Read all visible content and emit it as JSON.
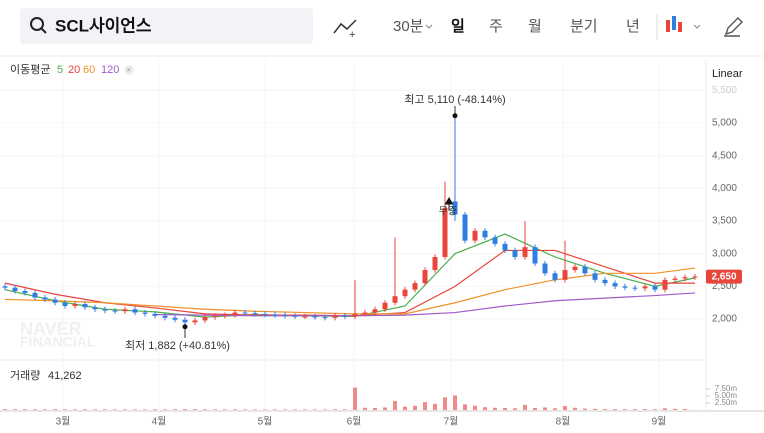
{
  "header": {
    "search": "SCL사이언스",
    "intervals": [
      "30분",
      "일",
      "주",
      "월",
      "분기",
      "년"
    ]
  },
  "chart_data": {
    "type": "candlestick",
    "scale": "Linear",
    "ma_title": "이동평균",
    "x": [
      0,
      1,
      2,
      3,
      4,
      5,
      6,
      7,
      8,
      9,
      10,
      11,
      12,
      13,
      14,
      15,
      16,
      17,
      18,
      19,
      20,
      21,
      22,
      23,
      24,
      25,
      26,
      27,
      28,
      29,
      30,
      31,
      32,
      33,
      34,
      35,
      36,
      37,
      38,
      39,
      40,
      41,
      42,
      43,
      44,
      45,
      46,
      47,
      48,
      49,
      50,
      51,
      52,
      53,
      54,
      55,
      56,
      57,
      58,
      59,
      60,
      61,
      62,
      63,
      64,
      65,
      66,
      67,
      68,
      69
    ],
    "xlim": [
      -0.5,
      69.5
    ],
    "xticks": [
      {
        "value": 5.8,
        "label": "3월"
      },
      {
        "value": 15.4,
        "label": "4월"
      },
      {
        "value": 26,
        "label": "5월"
      },
      {
        "value": 34.9,
        "label": "6월"
      },
      {
        "value": 44.6,
        "label": "7월"
      },
      {
        "value": 55.8,
        "label": "8월"
      },
      {
        "value": 65.4,
        "label": "9월"
      }
    ],
    "open": [
      2500,
      2480,
      2430,
      2400,
      2330,
      2300,
      2250,
      2200,
      2230,
      2180,
      2150,
      2130,
      2120,
      2150,
      2100,
      2080,
      2050,
      2020,
      1990,
      1950,
      1980,
      2030,
      2050,
      2060,
      2100,
      2090,
      2080,
      2070,
      2060,
      2050,
      2040,
      2040,
      2030,
      2020,
      2050,
      2040,
      2080,
      2100,
      2150,
      2250,
      2350,
      2450,
      2550,
      2750,
      2950,
      3800,
      3600,
      3200,
      3350,
      3250,
      3150,
      3050,
      2950,
      3100,
      2850,
      2700,
      2600,
      2750,
      2800,
      2700,
      2600,
      2550,
      2500,
      2480,
      2470,
      2500,
      2450,
      2600,
      2620,
      2640
    ],
    "high": [
      2540,
      2520,
      2470,
      2440,
      2370,
      2340,
      2290,
      2270,
      2270,
      2220,
      2190,
      2170,
      2190,
      2190,
      2140,
      2120,
      2090,
      2060,
      2030,
      2020,
      2070,
      2090,
      2100,
      2140,
      2140,
      2130,
      2120,
      2110,
      2100,
      2090,
      2080,
      2080,
      2070,
      2090,
      2090,
      2600,
      2140,
      2190,
      2290,
      3250,
      2490,
      2590,
      2790,
      2990,
      4100,
      5110,
      3640,
      3390,
      3390,
      3290,
      3190,
      3090,
      3500,
      3140,
      2890,
      2740,
      3200,
      2840,
      2840,
      2740,
      2640,
      2590,
      2540,
      2520,
      2540,
      2540,
      2640,
      2660,
      2680,
      2690
    ],
    "low": [
      2440,
      2390,
      2360,
      2290,
      2260,
      2210,
      2160,
      2160,
      2140,
      2110,
      2090,
      2080,
      2080,
      2060,
      2040,
      2010,
      1980,
      1950,
      1882,
      1910,
      1940,
      1990,
      2010,
      2020,
      2050,
      2040,
      2030,
      2020,
      2010,
      2000,
      2000,
      1990,
      1980,
      1980,
      2000,
      2000,
      2040,
      2060,
      2110,
      2210,
      2310,
      2410,
      2510,
      2710,
      2910,
      3500,
      3160,
      3160,
      3210,
      3110,
      3010,
      2910,
      2910,
      2810,
      2660,
      2560,
      2560,
      2710,
      2660,
      2560,
      2510,
      2460,
      2440,
      2430,
      2430,
      2410,
      2410,
      2560,
      2580,
      2600
    ],
    "close": [
      2480,
      2430,
      2400,
      2330,
      2300,
      2250,
      2200,
      2230,
      2180,
      2150,
      2130,
      2120,
      2150,
      2100,
      2080,
      2050,
      2020,
      1990,
      1950,
      1980,
      2030,
      2050,
      2060,
      2100,
      2090,
      2080,
      2070,
      2060,
      2050,
      2040,
      2040,
      2030,
      2020,
      2050,
      2040,
      2080,
      2100,
      2150,
      2250,
      2350,
      2450,
      2550,
      2750,
      2950,
      3700,
      3600,
      3200,
      3350,
      3250,
      3150,
      3050,
      2950,
      3100,
      2850,
      2700,
      2600,
      2750,
      2800,
      2700,
      2600,
      2550,
      2500,
      2480,
      2470,
      2500,
      2450,
      2600,
      2620,
      2640,
      2650
    ],
    "up_color": "#e8453c",
    "down_color": "#2e7de1",
    "last_label": "2,650",
    "ylim": [
      1420,
      5580
    ],
    "yticks": [
      {
        "value": 2000,
        "label": "2,000"
      },
      {
        "value": 2500,
        "label": "2,500"
      },
      {
        "value": 3000,
        "label": "3,000"
      },
      {
        "value": 3500,
        "label": "3,500"
      },
      {
        "value": 4000,
        "label": "4,000"
      },
      {
        "value": 4500,
        "label": "4,500"
      },
      {
        "value": 5000,
        "label": "5,000"
      },
      {
        "value": 5500,
        "label": "5,500"
      }
    ],
    "grid": true,
    "series": [
      {
        "name": "5",
        "color": "#4caf50",
        "x": [
          0,
          5,
          10,
          15,
          20,
          25,
          30,
          35,
          40,
          45,
          50,
          55,
          60,
          65,
          69
        ],
        "values": [
          2450,
          2280,
          2150,
          2110,
          2030,
          2070,
          2050,
          2040,
          2200,
          3000,
          3300,
          2950,
          2700,
          2500,
          2630
        ]
      },
      {
        "name": "20",
        "color": "#e8453c",
        "x": [
          0,
          5,
          10,
          15,
          20,
          25,
          30,
          35,
          40,
          45,
          50,
          55,
          60,
          65,
          69
        ],
        "values": [
          2550,
          2380,
          2250,
          2170,
          2080,
          2060,
          2060,
          2050,
          2100,
          2500,
          3050,
          3050,
          2800,
          2550,
          2550
        ]
      },
      {
        "name": "60",
        "color": "#f0902a",
        "x": [
          0,
          5,
          10,
          15,
          20,
          25,
          30,
          35,
          40,
          45,
          50,
          55,
          60,
          65,
          69
        ],
        "values": [
          2300,
          2280,
          2250,
          2200,
          2150,
          2120,
          2100,
          2080,
          2080,
          2250,
          2450,
          2600,
          2700,
          2700,
          2780
        ]
      },
      {
        "name": "120",
        "color": "#a05cc8",
        "x": [
          0,
          5,
          10,
          15,
          20,
          25,
          30,
          35,
          40,
          45,
          50,
          55,
          60,
          65,
          69
        ],
        "values": [
          null,
          null,
          null,
          2070,
          2060,
          2050,
          2050,
          2050,
          2060,
          2100,
          2200,
          2280,
          2320,
          2360,
          2400
        ]
      }
    ],
    "high_annotation": "최고 5,110 (-48.14%)",
    "low_annotation": "최저 1,882 (+40.81%)",
    "event_label": "무증",
    "volume": {
      "label": "거래량",
      "last_label": "41,262",
      "color": "#f08a8a",
      "values": [
        300000,
        280000,
        320000,
        260000,
        250000,
        300000,
        270000,
        240000,
        260000,
        230000,
        250000,
        220000,
        240000,
        230000,
        210000,
        260000,
        240000,
        280000,
        350000,
        300000,
        260000,
        240000,
        230000,
        250000,
        220000,
        210000,
        200000,
        220000,
        210000,
        200000,
        230000,
        210000,
        200000,
        260000,
        240000,
        8000000,
        800000,
        700000,
        900000,
        3200000,
        1200000,
        1500000,
        2800000,
        2200000,
        4500000,
        5200000,
        2000000,
        1500000,
        1000000,
        800000,
        700000,
        600000,
        1800000,
        700000,
        900000,
        600000,
        1400000,
        800000,
        500000,
        400000,
        300000,
        350000,
        300000,
        280000,
        320000,
        300000,
        600000,
        400000,
        350000,
        41262
      ],
      "ylim": [
        0,
        8900000
      ],
      "yticks": [
        {
          "value": 2500000,
          "label": "2.50m"
        },
        {
          "value": 5000000,
          "label": "5.00m"
        },
        {
          "value": 7500000,
          "label": "7.50m"
        }
      ]
    }
  }
}
